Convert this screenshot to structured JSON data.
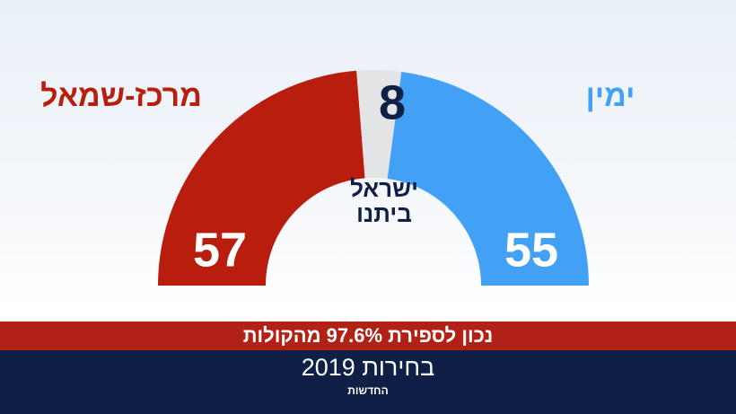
{
  "chart_data": {
    "type": "half-donut",
    "title": "בחירות 2019",
    "subtitle": "נכון לספירת 97.6% מהקולות",
    "source": "החדשות",
    "categories": [
      "מרכז-שמאל",
      "ישראל ביתנו",
      "ימין"
    ],
    "values": [
      57,
      8,
      55
    ],
    "colors": [
      "#b81d0e",
      "#e3e4e6",
      "#42a1f5"
    ]
  }
}
